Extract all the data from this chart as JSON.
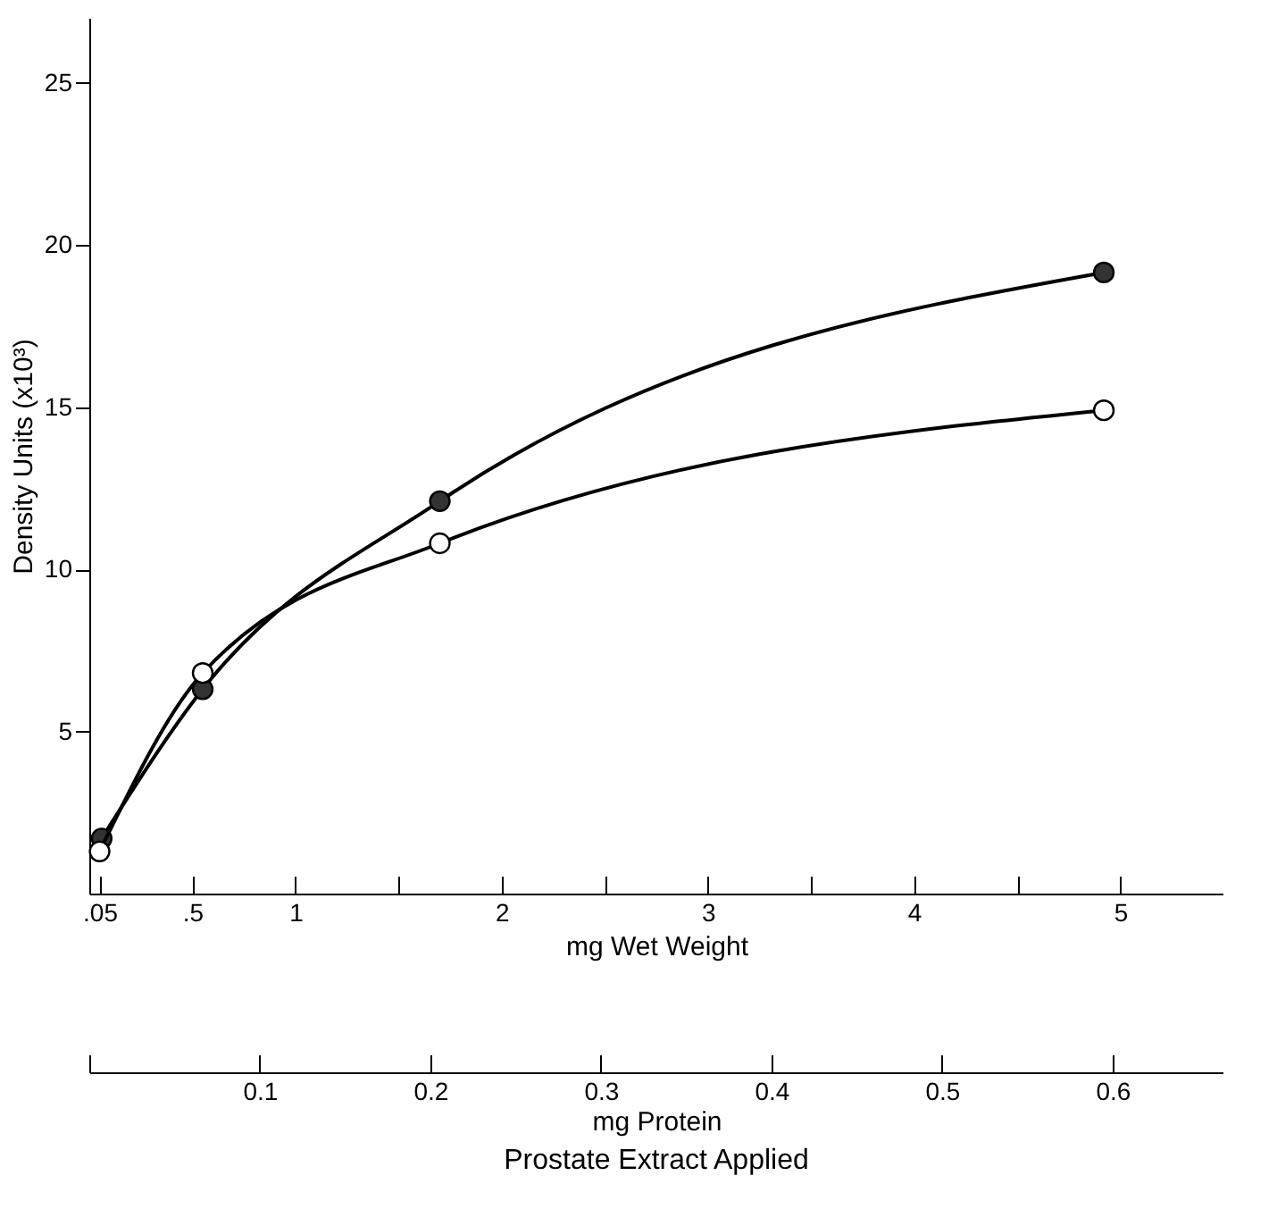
{
  "chart_data": {
    "type": "line",
    "xlabel": "mg Wet Weight",
    "ylabel": "Density Units (x10³)",
    "x2label": "mg Protein",
    "annotations": [
      "Prostate Extract Applied"
    ],
    "series": [
      {
        "x": [
          0.06,
          0.55,
          1.7,
          4.92
        ],
        "values": [
          1.7,
          6.3,
          12.1,
          19.15
        ],
        "color": "#333333"
      },
      {
        "x": [
          0.05,
          0.55,
          1.7,
          4.92
        ],
        "values": [
          1.3,
          6.8,
          10.8,
          14.9
        ],
        "color": "#ffffff"
      }
    ],
    "xlim": [
      0,
      5.5
    ],
    "xticks": [
      {
        "value": 0.05,
        "label": ".05"
      },
      {
        "value": 0.5,
        "label": ".5"
      },
      1,
      {
        "value": 1.5,
        "label": null
      },
      2,
      {
        "value": 2.5,
        "label": null
      },
      3,
      {
        "value": 3.5,
        "label": null
      },
      4,
      {
        "value": 4.5,
        "label": null
      },
      5
    ],
    "x2lim": [
      0,
      0.665
    ],
    "x2ticks": [
      {
        "value": 0,
        "label": null
      },
      0.1,
      0.2,
      0.3,
      0.4,
      0.5,
      0.6
    ],
    "ylim": [
      0,
      27
    ],
    "yticks": [
      5,
      10,
      15,
      20,
      25
    ],
    "grid": false,
    "marker": "circle",
    "line_style": "solid"
  }
}
